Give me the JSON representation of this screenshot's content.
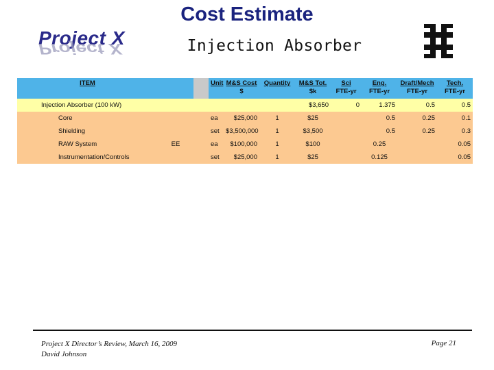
{
  "title": "Cost Estimate",
  "subtitle": "Injection Absorber",
  "logo_text": "Project X",
  "logo_icon": "fermilab-logo",
  "table": {
    "headers": {
      "item": "ITEM",
      "unit": "Unit",
      "ms_cost": [
        "M&S Cost",
        "$"
      ],
      "quantity": "Quantity",
      "ms_tot": [
        "M&S Tot.",
        "$k"
      ],
      "sci": [
        "Sci",
        "FTE-yr"
      ],
      "eng": [
        "Eng.",
        "FTE-yr"
      ],
      "draft": [
        "Draft/Mech",
        "FTE-yr"
      ],
      "tech": [
        "Tech.",
        "FTE-yr"
      ]
    },
    "summary": {
      "name": "Injection Absorber  (100 kW)",
      "ms_tot": "$3,650",
      "sci": "0",
      "eng": "1.375",
      "draft": "0.5",
      "tech": "0.5"
    },
    "rows": [
      {
        "name": "Core",
        "tag": "",
        "unit": "ea",
        "ms_cost": "$25,000",
        "quantity": "1",
        "ms_tot": "$25",
        "eng": "0.5",
        "draft": "0.25",
        "tech": "0.1"
      },
      {
        "name": "Shielding",
        "tag": "",
        "unit": "set",
        "ms_cost": "$3,500,000",
        "quantity": "1",
        "ms_tot": "$3,500",
        "eng": "0.5",
        "draft": "0.25",
        "tech": "0.3"
      },
      {
        "name": "RAW System",
        "tag": "EE",
        "unit": "ea",
        "ms_cost": "$100,000",
        "quantity": "1",
        "ms_tot": "$100",
        "eng": "0.25",
        "draft": "",
        "tech": "0.05"
      },
      {
        "name": "Instrumentation/Controls",
        "tag": "",
        "unit": "set",
        "ms_cost": "$25,000",
        "quantity": "1",
        "ms_tot": "$25",
        "eng": "0.125",
        "draft": "",
        "tech": "0.05"
      }
    ]
  },
  "footer": {
    "line1": "Project X Director’s Review, March 16, 2009",
    "line2": "David Johnson",
    "page": "Page  21"
  }
}
